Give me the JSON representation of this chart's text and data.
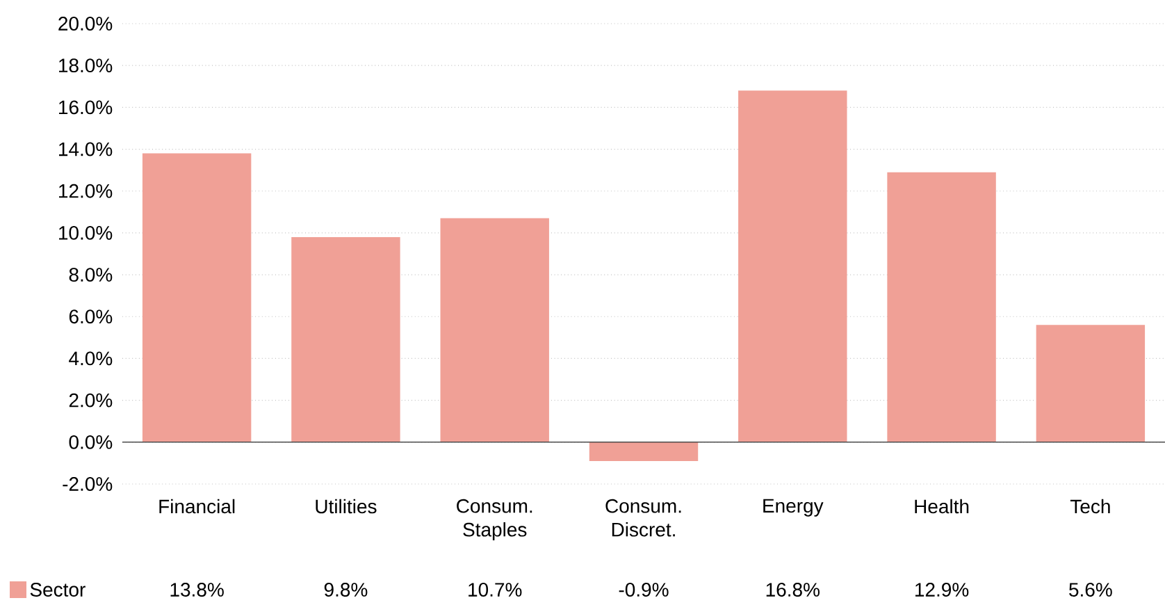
{
  "chart_data": {
    "type": "bar",
    "categories": [
      "Financial",
      "Utilities",
      "Consum. Staples",
      "Consum. Discret.",
      "Energy",
      "Health",
      "Tech"
    ],
    "series": [
      {
        "name": "Sector",
        "color": "#f0a096",
        "values": [
          13.8,
          9.8,
          10.7,
          -0.9,
          16.8,
          12.9,
          5.6
        ],
        "value_labels": [
          "13.8%",
          "9.8%",
          "10.7%",
          "-0.9%",
          "16.8%",
          "12.9%",
          "5.6%"
        ]
      }
    ],
    "ylim": [
      -2,
      20
    ],
    "yticks": [
      {
        "value": -2,
        "label": "-2.0%"
      },
      {
        "value": 0,
        "label": "0.0%"
      },
      {
        "value": 2,
        "label": "2.0%"
      },
      {
        "value": 4,
        "label": "4.0%"
      },
      {
        "value": 6,
        "label": "6.0%"
      },
      {
        "value": 8,
        "label": "8.0%"
      },
      {
        "value": 10,
        "label": "10.0%"
      },
      {
        "value": 12,
        "label": "12.0%"
      },
      {
        "value": 14,
        "label": "14.0%"
      },
      {
        "value": 16,
        "label": "16.0%"
      },
      {
        "value": 18,
        "label": "18.0%"
      },
      {
        "value": 20,
        "label": "20.0%"
      }
    ],
    "grid": "y",
    "legend": "bottom"
  }
}
